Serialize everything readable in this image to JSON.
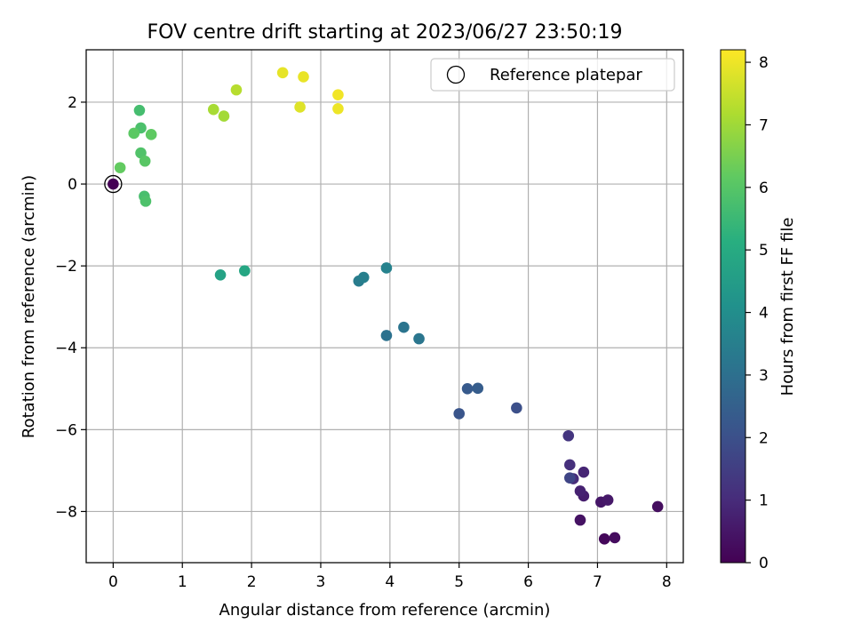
{
  "chart_data": {
    "type": "scatter",
    "title": "FOV centre drift starting at 2023/06/27 23:50:19",
    "xlabel": "Angular distance from reference (arcmin)",
    "ylabel": "Rotation from reference (arcmin)",
    "xlim": [
      -0.39,
      8.24
    ],
    "ylim": [
      -9.25,
      3.28
    ],
    "xticks": [
      0,
      1,
      2,
      3,
      4,
      5,
      6,
      7,
      8
    ],
    "yticks": [
      -8,
      -6,
      -4,
      -2,
      0,
      2
    ],
    "grid": true,
    "legend": {
      "position": "top-right",
      "entries": [
        "Reference platepar"
      ]
    },
    "reference_point": {
      "x": 0,
      "y": 0
    },
    "colorbar": {
      "label": "Hours from first FF file",
      "range": [
        0,
        8.2
      ],
      "ticks": [
        0,
        1,
        2,
        3,
        4,
        5,
        6,
        7,
        8
      ],
      "colormap": "viridis"
    },
    "points": [
      {
        "x": 0.0,
        "y": 0.0,
        "hours": 0.0
      },
      {
        "x": 7.1,
        "y": -8.67,
        "hours": 0.15
      },
      {
        "x": 7.25,
        "y": -8.64,
        "hours": 0.25
      },
      {
        "x": 7.87,
        "y": -7.88,
        "hours": 0.3
      },
      {
        "x": 6.75,
        "y": -8.21,
        "hours": 0.4
      },
      {
        "x": 7.05,
        "y": -7.77,
        "hours": 0.5
      },
      {
        "x": 7.15,
        "y": -7.72,
        "hours": 0.55
      },
      {
        "x": 6.8,
        "y": -7.62,
        "hours": 0.65
      },
      {
        "x": 6.75,
        "y": -7.5,
        "hours": 0.75
      },
      {
        "x": 6.8,
        "y": -7.04,
        "hours": 0.85
      },
      {
        "x": 6.65,
        "y": -7.2,
        "hours": 1.0
      },
      {
        "x": 6.6,
        "y": -6.86,
        "hours": 1.1
      },
      {
        "x": 6.58,
        "y": -6.15,
        "hours": 1.25
      },
      {
        "x": 6.6,
        "y": -7.18,
        "hours": 1.7
      },
      {
        "x": 5.83,
        "y": -5.47,
        "hours": 2.0
      },
      {
        "x": 5.0,
        "y": -5.61,
        "hours": 2.15
      },
      {
        "x": 5.12,
        "y": -5.0,
        "hours": 2.3
      },
      {
        "x": 5.27,
        "y": -4.99,
        "hours": 2.4
      },
      {
        "x": 3.95,
        "y": -3.7,
        "hours": 3.05
      },
      {
        "x": 4.2,
        "y": -3.5,
        "hours": 3.15
      },
      {
        "x": 4.42,
        "y": -3.78,
        "hours": 3.2
      },
      {
        "x": 3.55,
        "y": -2.37,
        "hours": 3.4
      },
      {
        "x": 3.62,
        "y": -2.28,
        "hours": 3.5
      },
      {
        "x": 3.95,
        "y": -2.05,
        "hours": 3.6
      },
      {
        "x": 1.55,
        "y": -2.22,
        "hours": 4.7
      },
      {
        "x": 1.9,
        "y": -2.12,
        "hours": 4.85
      },
      {
        "x": 0.45,
        "y": -0.3,
        "hours": 5.75
      },
      {
        "x": 0.47,
        "y": -0.42,
        "hours": 5.85
      },
      {
        "x": 0.38,
        "y": 1.8,
        "hours": 5.7
      },
      {
        "x": 0.4,
        "y": 1.37,
        "hours": 5.8
      },
      {
        "x": 0.4,
        "y": 0.76,
        "hours": 5.9
      },
      {
        "x": 0.46,
        "y": 0.56,
        "hours": 6.05
      },
      {
        "x": 0.3,
        "y": 1.24,
        "hours": 6.1
      },
      {
        "x": 0.55,
        "y": 1.21,
        "hours": 6.15
      },
      {
        "x": 0.1,
        "y": 0.4,
        "hours": 6.2
      },
      {
        "x": 1.6,
        "y": 1.66,
        "hours": 7.05
      },
      {
        "x": 1.45,
        "y": 1.82,
        "hours": 7.1
      },
      {
        "x": 1.78,
        "y": 2.3,
        "hours": 7.3
      },
      {
        "x": 2.45,
        "y": 2.72,
        "hours": 7.9
      },
      {
        "x": 2.7,
        "y": 1.88,
        "hours": 7.8
      },
      {
        "x": 2.75,
        "y": 2.62,
        "hours": 7.95
      },
      {
        "x": 3.25,
        "y": 2.18,
        "hours": 8.05
      },
      {
        "x": 3.25,
        "y": 1.84,
        "hours": 8.0
      }
    ]
  }
}
